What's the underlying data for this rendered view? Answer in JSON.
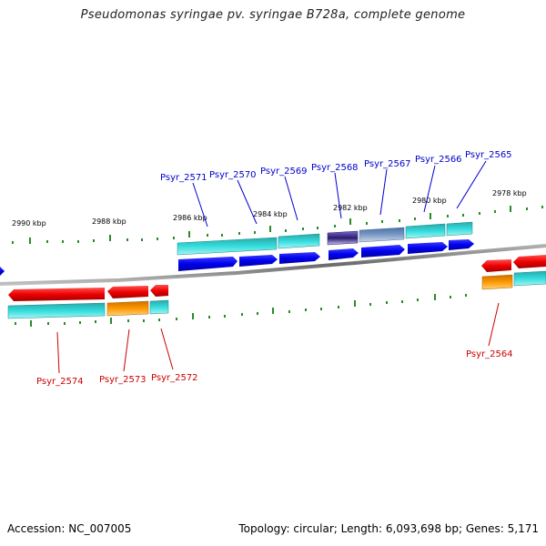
{
  "header": {
    "title": "Pseudomonas syringae pv. syringae B728a, complete genome"
  },
  "footer": {
    "accession": "Accession: NC_007005",
    "stats": "Topology: circular; Length: 6,093,698 bp; Genes: 5,171"
  },
  "colors": {
    "backbone": "#8a8a8a",
    "tick": "#2a8a2a",
    "label_top": "#0000cc",
    "label_bottom": "#cc0000",
    "gene_blue": "#0000ee",
    "gene_red": "#ee0000",
    "cog_cyan": "#22cccc",
    "cog_orange": "#ff9900",
    "cog_purple": "#4a3c9a",
    "cog_steel": "#5a80b0"
  },
  "scale": {
    "major_ticks": [
      {
        "label": "2990 kbp"
      },
      {
        "label": "2988 kbp"
      },
      {
        "label": "2986 kbp"
      },
      {
        "label": "2984 kbp"
      },
      {
        "label": "2982 kbp"
      },
      {
        "label": "2980 kbp"
      },
      {
        "label": "2978 kbp"
      }
    ]
  },
  "genes_top": [
    {
      "label": "Psyr_2571"
    },
    {
      "label": "Psyr_2570"
    },
    {
      "label": "Psyr_2569"
    },
    {
      "label": "Psyr_2568"
    },
    {
      "label": "Psyr_2567"
    },
    {
      "label": "Psyr_2566"
    },
    {
      "label": "Psyr_2565"
    }
  ],
  "genes_bottom": [
    {
      "label": "Psyr_2574"
    },
    {
      "label": "Psyr_2573"
    },
    {
      "label": "Psyr_2572"
    },
    {
      "label": "Psyr_2564"
    }
  ]
}
